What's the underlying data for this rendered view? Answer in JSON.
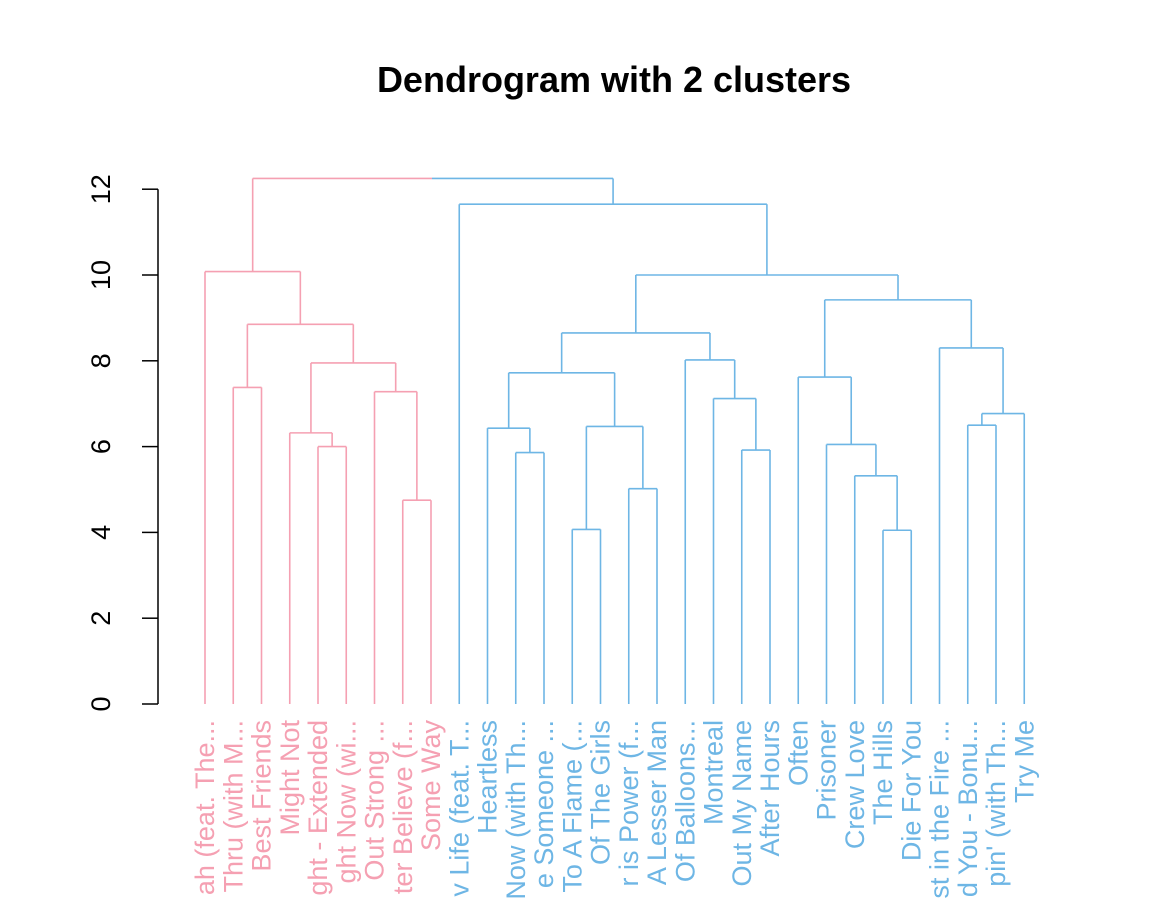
{
  "chart_data": {
    "type": "dendrogram",
    "title": "Dendrogram with 2 clusters",
    "xlabel": "",
    "ylabel": "",
    "ylim": [
      0,
      12.3
    ],
    "y_ticks": [
      0,
      2,
      4,
      6,
      8,
      10,
      12
    ],
    "colors": {
      "cluster_1": "#F5A0B2",
      "cluster_2": "#6EB6E5",
      "axis": "#000000"
    },
    "leaves": [
      {
        "label": "ah (feat. The...",
        "cluster": 1
      },
      {
        "label": "Thru (with M...",
        "cluster": 1
      },
      {
        "label": "Best Friends",
        "cluster": 1
      },
      {
        "label": "Might Not",
        "cluster": 1
      },
      {
        "label": "ght - Extended",
        "cluster": 1
      },
      {
        "label": "ght Now (wi...",
        "cluster": 1
      },
      {
        "label": "Out Strong ...",
        "cluster": 1
      },
      {
        "label": "ter Believe (f...",
        "cluster": 1
      },
      {
        "label": "Some Way",
        "cluster": 1
      },
      {
        "label": "v Life (feat. T...",
        "cluster": 2
      },
      {
        "label": "Heartless",
        "cluster": 2
      },
      {
        "label": "Now (with Th...",
        "cluster": 2
      },
      {
        "label": "e Someone ...",
        "cluster": 2
      },
      {
        "label": "To A Flame (...",
        "cluster": 2
      },
      {
        "label": "Of The Girls",
        "cluster": 2
      },
      {
        "label": "r is Power (f...",
        "cluster": 2
      },
      {
        "label": "A Lesser Man",
        "cluster": 2
      },
      {
        "label": "Of Balloons...",
        "cluster": 2
      },
      {
        "label": "Montreal",
        "cluster": 2
      },
      {
        "label": "Out My Name",
        "cluster": 2
      },
      {
        "label": "After Hours",
        "cluster": 2
      },
      {
        "label": "Often",
        "cluster": 2
      },
      {
        "label": "Prisoner",
        "cluster": 2
      },
      {
        "label": "Crew Love",
        "cluster": 2
      },
      {
        "label": "The Hills",
        "cluster": 2
      },
      {
        "label": "Die For You",
        "cluster": 2
      },
      {
        "label": "st in the Fire ...",
        "cluster": 2
      },
      {
        "label": "d You - Bonu...",
        "cluster": 2
      },
      {
        "label": "pin' (with Th...",
        "cluster": 2
      },
      {
        "label": "Try Me",
        "cluster": 2
      }
    ],
    "merges": [
      {
        "id": "a",
        "left": "L4",
        "right": "L5",
        "height": 6.0
      },
      {
        "id": "b",
        "left": "L3",
        "right": "a",
        "height": 6.32
      },
      {
        "id": "c",
        "left": "L7",
        "right": "L8",
        "height": 4.75
      },
      {
        "id": "d",
        "left": "L6",
        "right": "c",
        "height": 7.28
      },
      {
        "id": "e",
        "left": "b",
        "right": "d",
        "height": 7.95
      },
      {
        "id": "f",
        "left": "L1",
        "right": "L2",
        "height": 7.38
      },
      {
        "id": "g",
        "left": "f",
        "right": "e",
        "height": 8.85
      },
      {
        "id": "h",
        "left": "L0",
        "right": "g",
        "height": 10.08
      },
      {
        "id": "i",
        "left": "L11",
        "right": "L12",
        "height": 5.86
      },
      {
        "id": "j",
        "left": "L10",
        "right": "i",
        "height": 6.43
      },
      {
        "id": "k",
        "left": "L13",
        "right": "L14",
        "height": 4.07
      },
      {
        "id": "l",
        "left": "L15",
        "right": "L16",
        "height": 5.02
      },
      {
        "id": "m",
        "left": "k",
        "right": "l",
        "height": 6.47
      },
      {
        "id": "n",
        "left": "j",
        "right": "m",
        "height": 7.72
      },
      {
        "id": "o",
        "left": "L19",
        "right": "L20",
        "height": 5.92
      },
      {
        "id": "p",
        "left": "L18",
        "right": "o",
        "height": 7.12
      },
      {
        "id": "q",
        "left": "L17",
        "right": "p",
        "height": 8.02
      },
      {
        "id": "r",
        "left": "n",
        "right": "q",
        "height": 8.65
      },
      {
        "id": "s",
        "left": "L24",
        "right": "L25",
        "height": 4.05
      },
      {
        "id": "t",
        "left": "L23",
        "right": "s",
        "height": 5.32
      },
      {
        "id": "u",
        "left": "L22",
        "right": "t",
        "height": 6.05
      },
      {
        "id": "v",
        "left": "L21",
        "right": "u",
        "height": 7.62
      },
      {
        "id": "w",
        "left": "L27",
        "right": "L28",
        "height": 6.5
      },
      {
        "id": "x",
        "left": "L29",
        "right": "w",
        "height": 6.77
      },
      {
        "id": "y",
        "left": "L26",
        "right": "x",
        "height": 8.3
      },
      {
        "id": "z",
        "left": "v",
        "right": "y",
        "height": 9.42
      },
      {
        "id": "aa",
        "left": "r",
        "right": "z",
        "height": 10.0
      },
      {
        "id": "bb",
        "left": "L9",
        "right": "aa",
        "height": 11.65
      },
      {
        "id": "root",
        "left": "h",
        "right": "bb",
        "height": 12.25
      }
    ]
  }
}
